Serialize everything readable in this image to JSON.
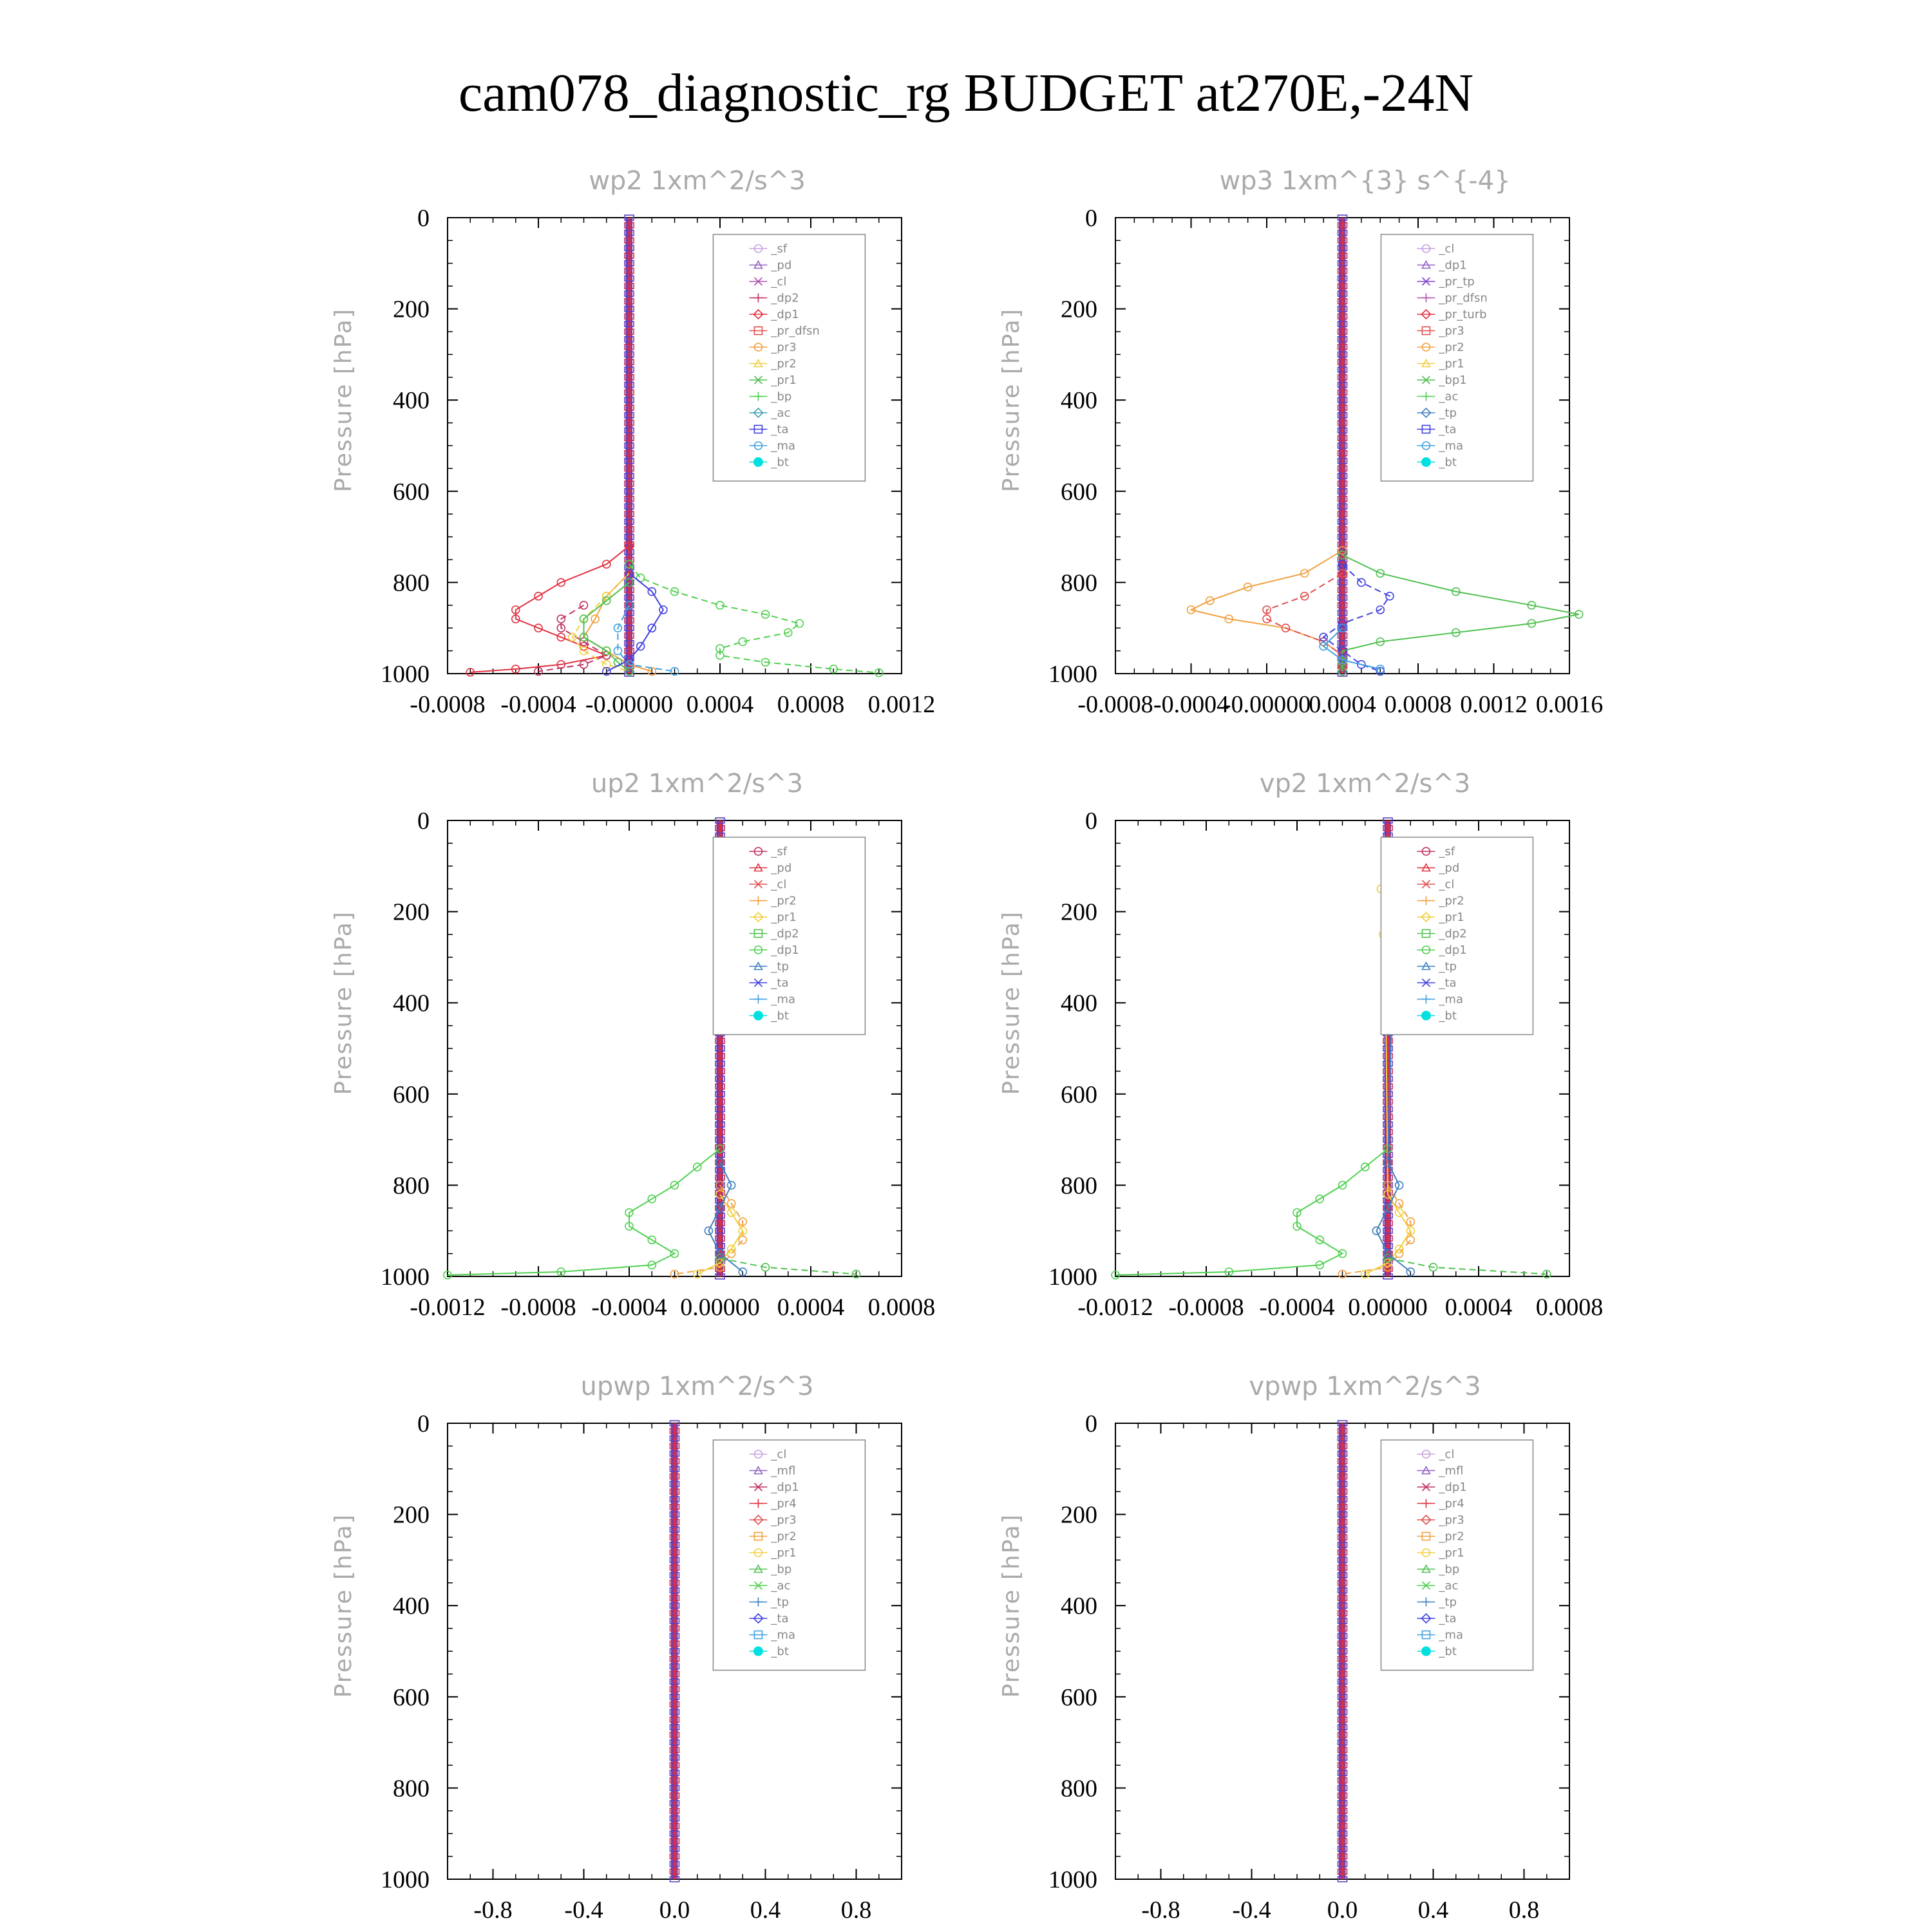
{
  "title": "cam078_diagnostic_rg  BUDGET at270E,-24N",
  "chart_data": [
    {
      "type": "line",
      "title": "wp2   1xm^2/s^3",
      "ylabel": "Pressure [hPa]",
      "ylim": [
        1000,
        0
      ],
      "yticks": [
        "0",
        "200",
        "400",
        "600",
        "800",
        "1000"
      ],
      "xlim": [
        -0.0008,
        0.0012
      ],
      "xticks": [
        "-0.0008",
        "-0.0004",
        "-0.00000",
        "0.0004",
        "0.0008",
        "0.0012"
      ],
      "legend_entries": [
        "_sf",
        "_pd",
        "_cl",
        "_dp2",
        "_dp1",
        "_pr_dfsn",
        "_pr3",
        "_pr2",
        "_pr1",
        "_bp",
        "_ac",
        "_ta",
        "_ma",
        "_bt"
      ],
      "colors": [
        "#c8a0e0",
        "#9060c0",
        "#b050b0",
        "#c03060",
        "#e03040",
        "#e05050",
        "#f0a040",
        "#f0d040",
        "#50c050",
        "#50d050",
        "#40a0b0",
        "#4040e0",
        "#40a0e0",
        "#00e0e0"
      ],
      "series": [
        {
          "name": "_dp1",
          "y": [
            720,
            760,
            800,
            830,
            860,
            880,
            900,
            920,
            940,
            960,
            980,
            990,
            997
          ],
          "values": [
            0.0,
            -0.0001,
            -0.0003,
            -0.0004,
            -0.0005,
            -0.0005,
            -0.0004,
            -0.0003,
            -0.0002,
            -0.0001,
            -0.0003,
            -0.0005,
            -0.0007
          ]
        },
        {
          "name": "_dp2",
          "y": [
            850,
            880,
            900,
            930,
            960,
            980,
            995
          ],
          "values": [
            -0.0002,
            -0.0003,
            -0.0003,
            -0.0002,
            -0.0001,
            -0.0002,
            -0.0004
          ]
        },
        {
          "name": "_pr3",
          "y": [
            780,
            830,
            880,
            920,
            950,
            980,
            995
          ],
          "values": [
            0.0,
            -0.0001,
            -0.00015,
            -0.0002,
            -0.0001,
            0.0,
            0.0001
          ]
        },
        {
          "name": "_pr2",
          "y": [
            780,
            830,
            880,
            920,
            950,
            980,
            995
          ],
          "values": [
            0.0,
            -0.0001,
            -0.0002,
            -0.00025,
            -0.0002,
            -0.0001,
            0.0
          ]
        },
        {
          "name": "_pr1",
          "y": [
            800,
            840,
            880,
            920,
            950,
            975,
            995
          ],
          "values": [
            0.0,
            -0.0001,
            -0.0002,
            -0.0002,
            -0.0001,
            -5e-05,
            0.0
          ]
        },
        {
          "name": "_bp",
          "y": [
            760,
            790,
            820,
            850,
            870,
            890,
            910,
            930,
            945,
            960,
            975,
            990,
            998
          ],
          "values": [
            0.0,
            5e-05,
            0.0002,
            0.0004,
            0.0006,
            0.00075,
            0.0007,
            0.0005,
            0.0004,
            0.0004,
            0.0006,
            0.0009,
            0.0011
          ]
        },
        {
          "name": "_ta",
          "y": [
            780,
            820,
            860,
            900,
            940,
            970,
            995
          ],
          "values": [
            0.0,
            0.0001,
            0.00015,
            0.0001,
            5e-05,
            0.0,
            -0.0001
          ]
        },
        {
          "name": "_ma",
          "y": [
            850,
            900,
            950,
            980,
            995
          ],
          "values": [
            0.0,
            -5e-05,
            -5e-05,
            0.0,
            0.0002
          ]
        }
      ]
    },
    {
      "type": "line",
      "title": "wp3   1xm^{3} s^{-4}",
      "ylabel": "Pressure [hPa]",
      "ylim": [
        1000,
        0
      ],
      "yticks": [
        "0",
        "200",
        "400",
        "600",
        "800",
        "1000"
      ],
      "xlim": [
        -0.0008,
        0.0016
      ],
      "xticks": [
        "-0.0008",
        "-0.0004",
        "-0.00000",
        "0.0004",
        "0.0008",
        "0.0012",
        "0.0016"
      ],
      "legend_entries": [
        "_cl",
        "_dp1",
        "_pr_tp",
        "_pr_dfsn",
        "_pr_turb",
        "_pr3",
        "_pr2",
        "_pr1",
        "_bp1",
        "_ac",
        "_tp",
        "_ta",
        "_ma",
        "_bt"
      ],
      "colors": [
        "#c8a0e0",
        "#9060c0",
        "#8040d0",
        "#b050b0",
        "#e03040",
        "#e05050",
        "#f0a040",
        "#f0d040",
        "#50c050",
        "#50d050",
        "#4080c0",
        "#4040e0",
        "#40a0e0",
        "#00e0e0"
      ],
      "series": [
        {
          "name": "_pr2",
          "y": [
            730,
            780,
            810,
            840,
            860,
            880,
            900,
            930,
            960,
            985
          ],
          "values": [
            0.0,
            -0.0002,
            -0.0005,
            -0.0007,
            -0.0008,
            -0.0006,
            -0.0003,
            -0.0001,
            0.0,
            0.0
          ]
        },
        {
          "name": "_pr3",
          "y": [
            780,
            830,
            860,
            880,
            900,
            930,
            960,
            985
          ],
          "values": [
            0.0,
            -0.0002,
            -0.0004,
            -0.0004,
            -0.0003,
            -0.0001,
            0.0,
            0.0
          ]
        },
        {
          "name": "_bp1",
          "y": [
            740,
            780,
            820,
            850,
            870,
            890,
            910,
            930,
            950,
            975,
            995
          ],
          "values": [
            0.0,
            0.0002,
            0.0006,
            0.001,
            0.00125,
            0.001,
            0.0006,
            0.0002,
            0.0,
            0.0,
            0.0
          ]
        },
        {
          "name": "_ta",
          "y": [
            760,
            800,
            830,
            860,
            890,
            920,
            950,
            980,
            995
          ],
          "values": [
            0.0,
            0.0001,
            0.00025,
            0.0002,
            0.0,
            -0.0001,
            0.0,
            0.0001,
            0.0002
          ]
        },
        {
          "name": "_ma",
          "y": [
            900,
            940,
            970,
            990
          ],
          "values": [
            0.0,
            -0.0001,
            0.0,
            0.0002
          ]
        }
      ]
    },
    {
      "type": "line",
      "title": "up2   1xm^2/s^3",
      "ylabel": "Pressure [hPa]",
      "ylim": [
        1000,
        0
      ],
      "yticks": [
        "0",
        "200",
        "400",
        "600",
        "800",
        "1000"
      ],
      "xlim": [
        -0.0012,
        0.0008
      ],
      "xticks": [
        "-0.0012",
        "-0.0008",
        "-0.0004",
        "0.00000",
        "0.0004",
        "0.0008"
      ],
      "legend_entries": [
        "_sf",
        "_pd",
        "_cl",
        "_pr2",
        "_pr1",
        "_dp2",
        "_dp1",
        "_tp",
        "_ta",
        "_ma",
        "_bt"
      ],
      "colors": [
        "#c03060",
        "#e03040",
        "#e05050",
        "#f0a040",
        "#f0d040",
        "#50c050",
        "#50d050",
        "#4080c0",
        "#4040e0",
        "#40a0e0",
        "#00e0e0"
      ],
      "series": [
        {
          "name": "_dp1",
          "y": [
            720,
            760,
            800,
            830,
            860,
            890,
            920,
            950,
            975,
            990,
            997
          ],
          "values": [
            0.0,
            -0.0001,
            -0.0002,
            -0.0003,
            -0.0004,
            -0.0004,
            -0.0003,
            -0.0002,
            -0.0003,
            -0.0007,
            -0.0012
          ]
        },
        {
          "name": "_pr2",
          "y": [
            800,
            840,
            880,
            920,
            950,
            980,
            995
          ],
          "values": [
            0.0,
            5e-05,
            0.0001,
            0.0001,
            5e-05,
            0.0,
            -0.0002
          ]
        },
        {
          "name": "_pr1",
          "y": [
            820,
            860,
            900,
            940,
            970,
            995
          ],
          "values": [
            0.0,
            5e-05,
            0.0001,
            5e-05,
            0.0,
            -0.0001
          ]
        },
        {
          "name": "_dp2",
          "y": [
            960,
            980,
            995
          ],
          "values": [
            0.0,
            0.0002,
            0.0006
          ]
        },
        {
          "name": "_tp",
          "y": [
            750,
            800,
            850,
            900,
            950,
            990
          ],
          "values": [
            0.0,
            5e-05,
            0.0,
            -5e-05,
            0.0,
            0.0001
          ]
        }
      ]
    },
    {
      "type": "line",
      "title": "vp2   1xm^2/s^3",
      "ylabel": "Pressure [hPa]",
      "ylim": [
        1000,
        0
      ],
      "yticks": [
        "0",
        "200",
        "400",
        "600",
        "800",
        "1000"
      ],
      "xlim": [
        -0.0012,
        0.0008
      ],
      "xticks": [
        "-0.0012",
        "-0.0008",
        "-0.0004",
        "0.00000",
        "0.0004",
        "0.0008"
      ],
      "legend_entries": [
        "_sf",
        "_pd",
        "_cl",
        "_pr2",
        "_pr1",
        "_dp2",
        "_dp1",
        "_tp",
        "_ta",
        "_ma",
        "_bt"
      ],
      "colors": [
        "#c03060",
        "#e03040",
        "#e05050",
        "#f0a040",
        "#f0d040",
        "#50c050",
        "#50d050",
        "#4080c0",
        "#4040e0",
        "#40a0e0",
        "#00e0e0"
      ],
      "series": [
        {
          "name": "_dp1",
          "y": [
            720,
            760,
            800,
            830,
            860,
            890,
            920,
            950,
            975,
            990,
            997
          ],
          "values": [
            0.0,
            -0.0001,
            -0.0002,
            -0.0003,
            -0.0004,
            -0.0004,
            -0.0003,
            -0.0002,
            -0.0003,
            -0.0007,
            -0.0012
          ]
        },
        {
          "name": "_pr2",
          "y": [
            800,
            840,
            880,
            920,
            950,
            980,
            995
          ],
          "values": [
            0.0,
            5e-05,
            0.0001,
            0.0001,
            5e-05,
            0.0,
            -0.0002
          ]
        },
        {
          "name": "_pr1",
          "y": [
            150,
            250,
            350,
            820,
            860,
            900,
            940,
            970,
            995
          ],
          "values": [
            -3e-05,
            -2e-05,
            -1e-05,
            0.0,
            5e-05,
            0.0001,
            5e-05,
            0.0,
            -0.0001
          ]
        },
        {
          "name": "_dp2",
          "y": [
            960,
            980,
            995
          ],
          "values": [
            0.0,
            0.0002,
            0.0007
          ]
        },
        {
          "name": "_tp",
          "y": [
            150,
            250,
            350,
            750,
            800,
            850,
            900,
            950,
            990
          ],
          "values": [
            3e-05,
            3e-05,
            2e-05,
            0.0,
            5e-05,
            0.0,
            -5e-05,
            0.0,
            0.0001
          ]
        }
      ]
    },
    {
      "type": "line",
      "title": "upwp   1xm^2/s^3",
      "ylabel": "Pressure [hPa]",
      "ylim": [
        1000,
        0
      ],
      "yticks": [
        "0",
        "200",
        "400",
        "600",
        "800",
        "1000"
      ],
      "xlim": [
        -1.0,
        1.0
      ],
      "xticks": [
        "-0.8",
        "-0.4",
        "0.0",
        "0.4",
        "0.8"
      ],
      "legend_entries": [
        "_cl",
        "_mfl",
        "_dp1",
        "_pr4",
        "_pr3",
        "_pr2",
        "_pr1",
        "_bp",
        "_ac",
        "_tp",
        "_ta",
        "_ma",
        "_bt"
      ],
      "colors": [
        "#c8a0e0",
        "#9060c0",
        "#c03060",
        "#e03040",
        "#e05050",
        "#f0a040",
        "#f0d040",
        "#50c050",
        "#50d050",
        "#4080c0",
        "#4040e0",
        "#40a0e0",
        "#00e0e0"
      ],
      "series": []
    },
    {
      "type": "line",
      "title": "vpwp   1xm^2/s^3",
      "ylabel": "Pressure [hPa]",
      "ylim": [
        1000,
        0
      ],
      "yticks": [
        "0",
        "200",
        "400",
        "600",
        "800",
        "1000"
      ],
      "xlim": [
        -1.0,
        1.0
      ],
      "xticks": [
        "-0.8",
        "-0.4",
        "0.0",
        "0.4",
        "0.8"
      ],
      "legend_entries": [
        "_cl",
        "_mfl",
        "_dp1",
        "_pr4",
        "_pr3",
        "_pr2",
        "_pr1",
        "_bp",
        "_ac",
        "_tp",
        "_ta",
        "_ma",
        "_bt"
      ],
      "colors": [
        "#c8a0e0",
        "#9060c0",
        "#c03060",
        "#e03040",
        "#e05050",
        "#f0a040",
        "#f0d040",
        "#50c050",
        "#50d050",
        "#4080c0",
        "#4040e0",
        "#40a0e0",
        "#00e0e0"
      ],
      "series": []
    }
  ]
}
